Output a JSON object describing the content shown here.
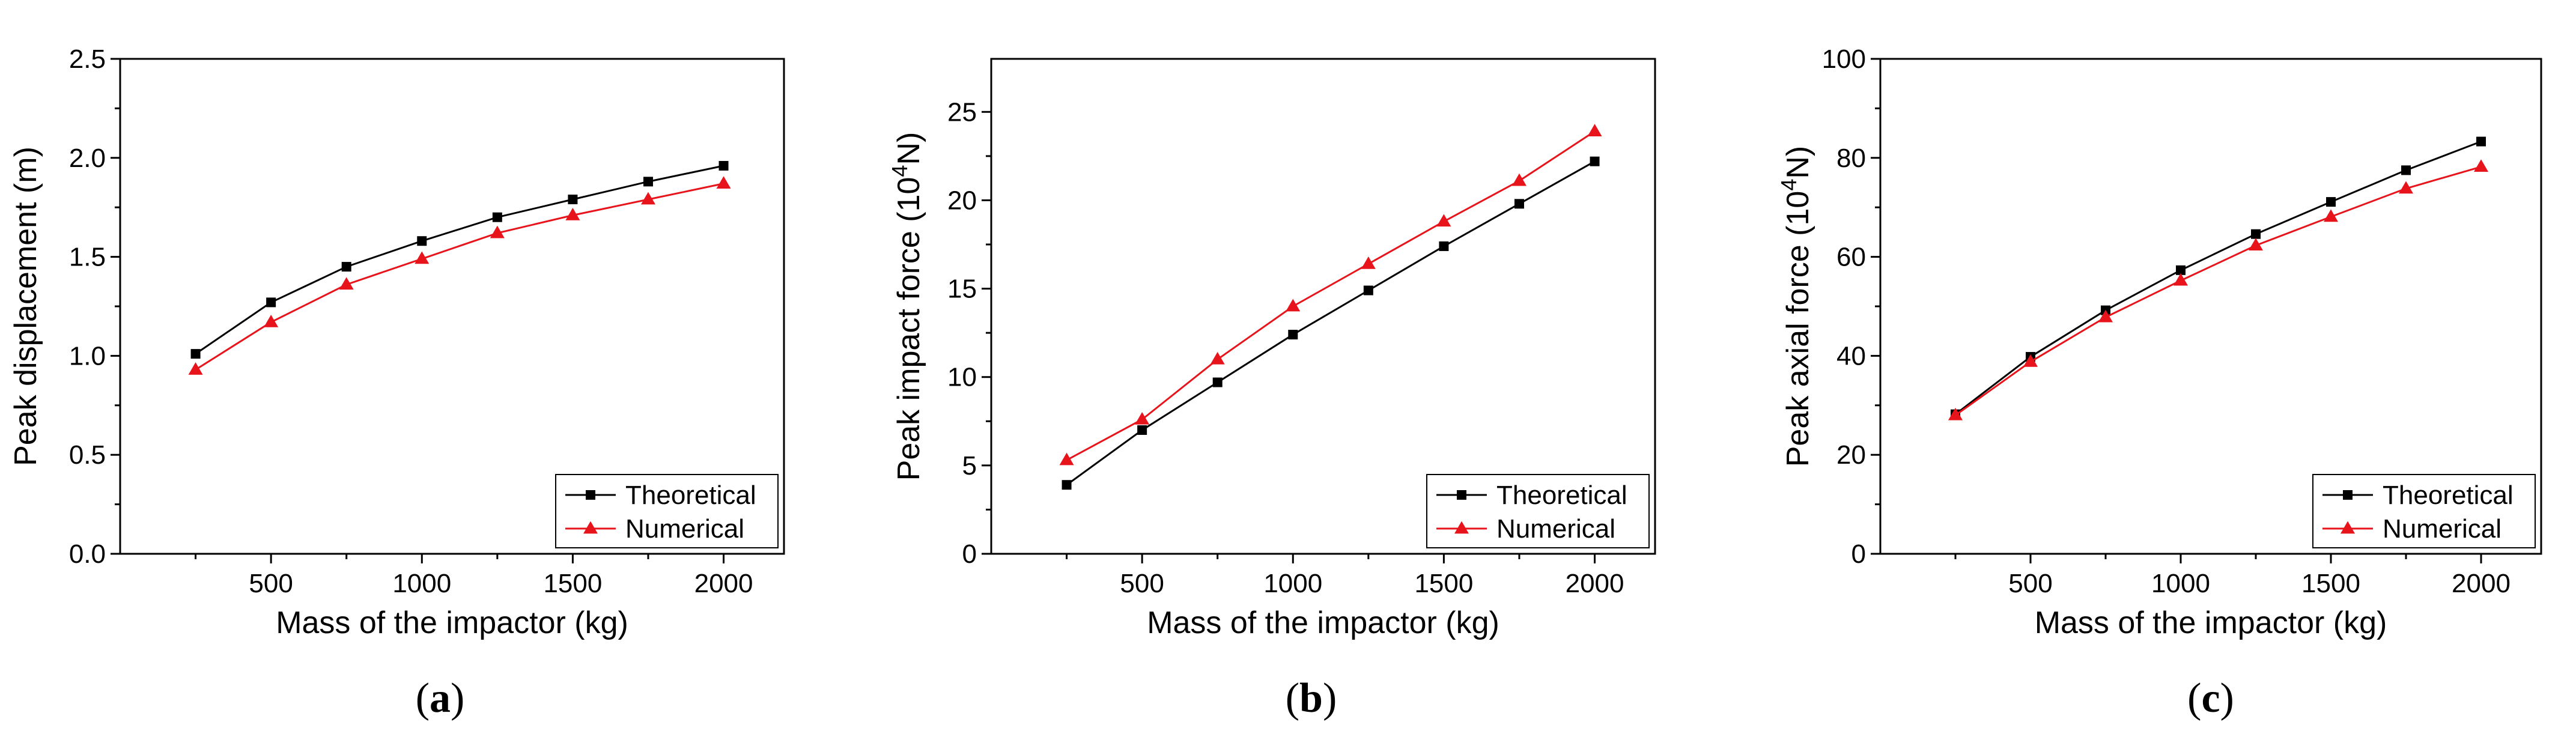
{
  "series_styles": [
    {
      "color": "#000000",
      "marker": "square"
    },
    {
      "color": "#e8141b",
      "marker": "triangle"
    }
  ],
  "chart_data": [
    {
      "type": "line",
      "panel_label": "a",
      "xlabel": "Mass of the impactor (kg)",
      "ylabel": "Peak displacement (m)",
      "ylabel_sup": "",
      "ylabel_suffix": "",
      "xlim": [
        0,
        2200
      ],
      "ylim": [
        0,
        2.5
      ],
      "xticks": [
        500,
        1000,
        1500,
        2000
      ],
      "xtick_labels": [
        "500",
        "1000",
        "1500",
        "2000"
      ],
      "yticks": [
        0,
        0.5,
        1.0,
        1.5,
        2.0,
        2.5
      ],
      "ytick_labels": [
        "0.0",
        "0.5",
        "1.0",
        "1.5",
        "2.0",
        "2.5"
      ],
      "x": [
        250,
        500,
        750,
        1000,
        1250,
        1500,
        1750,
        2000
      ],
      "legend_position": "bottom-right",
      "grid": false,
      "series": [
        {
          "name": "Theoretical",
          "values": [
            1.01,
            1.27,
            1.45,
            1.58,
            1.7,
            1.79,
            1.88,
            1.96
          ]
        },
        {
          "name": "Numerical",
          "values": [
            0.93,
            1.17,
            1.36,
            1.49,
            1.62,
            1.71,
            1.79,
            1.87
          ]
        }
      ]
    },
    {
      "type": "line",
      "panel_label": "b",
      "xlabel": "Mass of the impactor (kg)",
      "ylabel": "Peak impact force (10",
      "ylabel_sup": "4",
      "ylabel_suffix": "N)",
      "xlim": [
        0,
        2200
      ],
      "ylim": [
        0,
        28
      ],
      "xticks": [
        500,
        1000,
        1500,
        2000
      ],
      "xtick_labels": [
        "500",
        "1000",
        "1500",
        "2000"
      ],
      "yticks": [
        0,
        5,
        10,
        15,
        20,
        25
      ],
      "ytick_labels": [
        "0",
        "5",
        "10",
        "15",
        "20",
        "25"
      ],
      "x": [
        250,
        500,
        750,
        1000,
        1250,
        1500,
        1750,
        2000
      ],
      "legend_position": "bottom-right",
      "grid": false,
      "series": [
        {
          "name": "Theoretical",
          "values": [
            3.9,
            7.0,
            9.7,
            12.4,
            14.9,
            17.4,
            19.8,
            22.2
          ]
        },
        {
          "name": "Numerical",
          "values": [
            5.3,
            7.6,
            11.0,
            14.0,
            16.4,
            18.8,
            21.1,
            23.9
          ]
        }
      ]
    },
    {
      "type": "line",
      "panel_label": "c",
      "xlabel": "Mass of the impactor (kg)",
      "ylabel": "Peak axial force (10",
      "ylabel_sup": "4",
      "ylabel_suffix": "N)",
      "xlim": [
        0,
        2200
      ],
      "ylim": [
        0,
        100
      ],
      "xticks": [
        500,
        1000,
        1500,
        2000
      ],
      "xtick_labels": [
        "500",
        "1000",
        "1500",
        "2000"
      ],
      "yticks": [
        0,
        20,
        40,
        60,
        80,
        100
      ],
      "ytick_labels": [
        "0",
        "20",
        "40",
        "60",
        "80",
        "100"
      ],
      "x": [
        250,
        500,
        750,
        1000,
        1250,
        1500,
        1750,
        2000
      ],
      "legend_position": "bottom-right",
      "grid": false,
      "series": [
        {
          "name": "Theoretical",
          "values": [
            28.2,
            39.8,
            49.2,
            57.3,
            64.6,
            71.1,
            77.5,
            83.3
          ]
        },
        {
          "name": "Numerical",
          "values": [
            28.0,
            38.8,
            47.8,
            55.2,
            62.3,
            68.1,
            73.8,
            78.2
          ]
        }
      ]
    }
  ]
}
